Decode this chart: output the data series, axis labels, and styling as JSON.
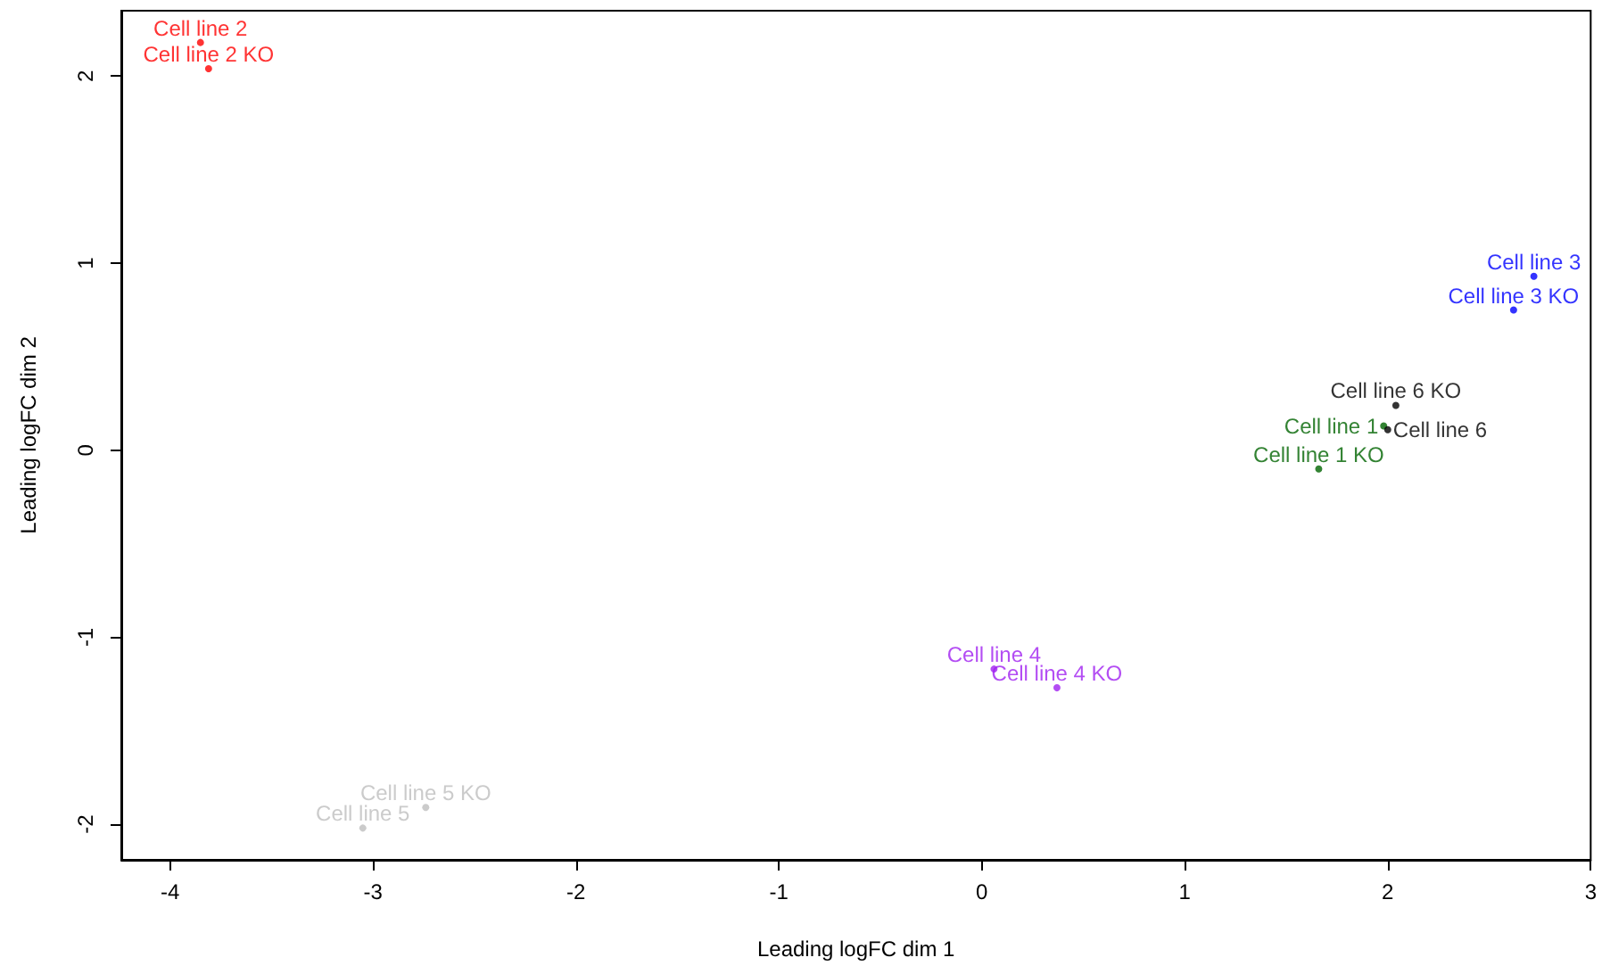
{
  "chart_data": {
    "type": "scatter",
    "xlabel": "Leading logFC dim 1",
    "ylabel": "Leading logFC dim 2",
    "xlim": [
      -4.24,
      3.0
    ],
    "ylim": [
      -2.19,
      2.35
    ],
    "xticks": [
      -4,
      -3,
      -2,
      -1,
      0,
      1,
      2,
      3
    ],
    "yticks": [
      -2,
      -1,
      0,
      1,
      2
    ],
    "grid": false,
    "series": [
      {
        "color": "#ff0000",
        "x": [
          -3.85,
          -3.81
        ],
        "values": [
          2.18,
          2.04
        ],
        "value_labels": [
          "Cell line 2",
          "Cell line 2 KO"
        ]
      },
      {
        "color": "#0000ff",
        "x": [
          2.72,
          2.62
        ],
        "values": [
          0.93,
          0.75
        ],
        "value_labels": [
          "Cell line 3",
          "Cell line 3 KO"
        ]
      },
      {
        "color": "#006400",
        "x": [
          1.98,
          1.66
        ],
        "values": [
          0.13,
          -0.1
        ],
        "value_labels": [
          "Cell line 1",
          "Cell line 1 KO"
        ]
      },
      {
        "color": "#000000",
        "x": [
          2.04,
          2.0
        ],
        "values": [
          0.24,
          0.11
        ],
        "value_labels": [
          "Cell line 6 KO",
          "Cell line 6"
        ]
      },
      {
        "color": "#a020f0",
        "x": [
          0.06,
          0.37
        ],
        "values": [
          -1.17,
          -1.27
        ],
        "value_labels": [
          "Cell line 4",
          "Cell line 4 KO"
        ]
      },
      {
        "color": "#bebebe",
        "x": [
          -2.74,
          -3.05
        ],
        "values": [
          -1.91,
          -2.02
        ],
        "value_labels": [
          "Cell line 5 KO",
          "Cell line 5"
        ]
      }
    ]
  }
}
